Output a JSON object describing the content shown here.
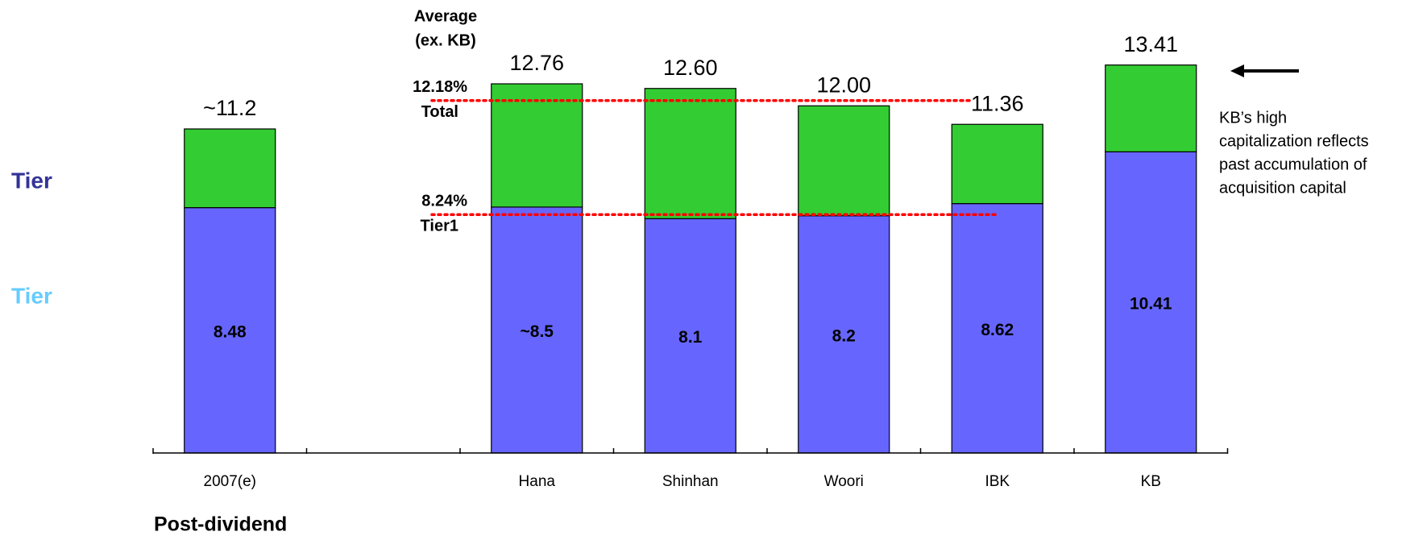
{
  "chart_data": {
    "type": "stacked_bar",
    "categories": [
      "2007(e)",
      null,
      "Hana",
      "Shinhan",
      "Woori",
      "IBK",
      "KB"
    ],
    "series": [
      {
        "name": "Tier",
        "color": "#6666ff",
        "label_color": "#66ccff",
        "values": [
          8.48,
          null,
          8.5,
          8.1,
          8.2,
          8.62,
          10.41
        ],
        "value_labels": [
          "8.48",
          null,
          "~8.5",
          "8.1",
          "8.2",
          "8.62",
          "10.41"
        ]
      },
      {
        "name": "Tier",
        "color": "#33cc33",
        "label_color": "#333399",
        "values": [
          2.72,
          null,
          4.26,
          4.5,
          3.8,
          2.74,
          3.0
        ]
      }
    ],
    "totals": [
      11.2,
      null,
      12.76,
      12.6,
      12.0,
      11.36,
      13.41
    ],
    "total_labels": [
      "~11.2",
      null,
      "12.76",
      "12.60",
      "12.00",
      "11.36",
      "13.41"
    ],
    "ylim": [
      0,
      15.1
    ],
    "reference_title": [
      "Average",
      "(ex. KB)"
    ],
    "reference_lines": [
      {
        "value": 12.18,
        "label": "12.18%",
        "name": "Total",
        "color": "#ff0000"
      },
      {
        "value": 8.24,
        "label": "8.24%",
        "name": "Tier1",
        "color": "#ff0000"
      }
    ],
    "annotation": [
      "KB’s high",
      "capitalization reflects",
      "past accumulation of",
      "acquisition capital"
    ],
    "footer": "Post-dividend"
  }
}
